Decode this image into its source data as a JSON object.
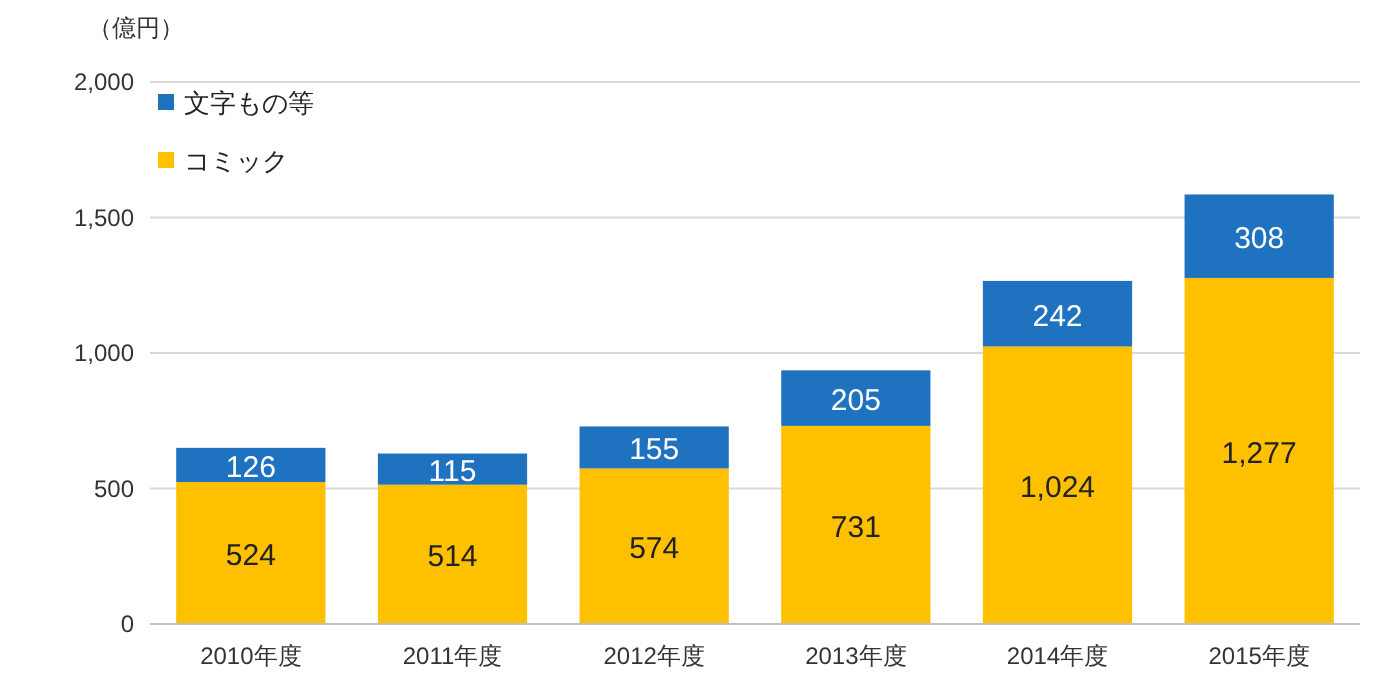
{
  "chart_data": {
    "type": "bar",
    "ylabel": "（億円）",
    "categories": [
      "2010年度",
      "2011年度",
      "2012年度",
      "2013年度",
      "2014年度",
      "2015年度"
    ],
    "stacked": true,
    "series": [
      {
        "name": "コミック",
        "color": "#ffc000",
        "values": [
          524,
          514,
          574,
          731,
          1024,
          1277
        ],
        "value_labels": [
          "524",
          "514",
          "574",
          "731",
          "1,024",
          "1,277"
        ]
      },
      {
        "name": "文字もの等",
        "color": "#1f72c0",
        "values": [
          126,
          115,
          155,
          205,
          242,
          308
        ],
        "value_labels": [
          "126",
          "115",
          "155",
          "205",
          "242",
          "308"
        ]
      }
    ],
    "ylim": [
      0,
      2000
    ],
    "yticks": [
      {
        "value": 0,
        "label": "0"
      },
      {
        "value": 500,
        "label": "500"
      },
      {
        "value": 1000,
        "label": "1,000"
      },
      {
        "value": 1500,
        "label": "1,500"
      },
      {
        "value": 2000,
        "label": "2,000"
      }
    ],
    "grid": "y",
    "legend": "top left"
  }
}
